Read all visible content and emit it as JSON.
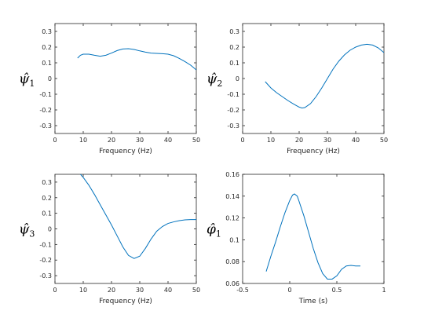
{
  "chart_data": [
    {
      "type": "line",
      "ylabel": {
        "symbol": "ψ̂",
        "sub": "1"
      },
      "xlabel": "Frequency (Hz)",
      "xlim": [
        0,
        50
      ],
      "ylim": [
        -0.35,
        0.35
      ],
      "xticks": [
        0,
        10,
        20,
        30,
        40,
        50
      ],
      "yticks": [
        0.3,
        0.2,
        0.1,
        0,
        -0.1,
        -0.2,
        -0.3
      ],
      "series": [
        {
          "color": "#0072bd",
          "x": [
            8,
            9,
            10,
            12,
            14,
            16,
            18,
            20,
            22,
            24,
            26,
            28,
            30,
            32,
            34,
            36,
            38,
            40,
            42,
            44,
            46,
            48,
            50
          ],
          "y": [
            0.13,
            0.148,
            0.155,
            0.155,
            0.148,
            0.142,
            0.148,
            0.162,
            0.178,
            0.188,
            0.19,
            0.185,
            0.176,
            0.168,
            0.162,
            0.16,
            0.158,
            0.155,
            0.145,
            0.128,
            0.108,
            0.085,
            0.055
          ]
        }
      ]
    },
    {
      "type": "line",
      "ylabel": {
        "symbol": "ψ̂",
        "sub": "2"
      },
      "xlabel": "Frequency (Hz)",
      "xlim": [
        0,
        50
      ],
      "ylim": [
        -0.35,
        0.35
      ],
      "xticks": [
        0,
        10,
        20,
        30,
        40,
        50
      ],
      "yticks": [
        0.3,
        0.2,
        0.1,
        0,
        -0.1,
        -0.2,
        -0.3
      ],
      "series": [
        {
          "color": "#0072bd",
          "x": [
            8,
            10,
            12,
            14,
            16,
            18,
            20,
            21,
            22,
            24,
            26,
            28,
            30,
            32,
            34,
            36,
            38,
            40,
            42,
            44,
            46,
            48,
            50
          ],
          "y": [
            -0.02,
            -0.06,
            -0.09,
            -0.115,
            -0.14,
            -0.162,
            -0.182,
            -0.188,
            -0.185,
            -0.16,
            -0.115,
            -0.06,
            0.0,
            0.06,
            0.11,
            0.15,
            0.18,
            0.2,
            0.213,
            0.218,
            0.213,
            0.195,
            0.165
          ]
        }
      ]
    },
    {
      "type": "line",
      "ylabel": {
        "symbol": "ψ̂",
        "sub": "3"
      },
      "xlabel": "Frequency (Hz)",
      "xlim": [
        0,
        50
      ],
      "ylim": [
        -0.35,
        0.35
      ],
      "xticks": [
        0,
        10,
        20,
        30,
        40,
        50
      ],
      "yticks": [
        0.3,
        0.2,
        0.1,
        0,
        -0.1,
        -0.2,
        -0.3
      ],
      "series": [
        {
          "color": "#0072bd",
          "x": [
            8,
            10,
            12,
            14,
            16,
            18,
            20,
            22,
            24,
            26,
            28,
            30,
            32,
            34,
            36,
            38,
            40,
            42,
            44,
            46,
            48,
            50
          ],
          "y": [
            0.37,
            0.33,
            0.28,
            0.22,
            0.155,
            0.09,
            0.025,
            -0.045,
            -0.115,
            -0.17,
            -0.19,
            -0.175,
            -0.125,
            -0.065,
            -0.015,
            0.015,
            0.035,
            0.045,
            0.053,
            0.058,
            0.06,
            0.06
          ]
        }
      ]
    },
    {
      "type": "line",
      "ylabel": {
        "symbol": "φ̂",
        "sub": "1"
      },
      "xlabel": "Time (s)",
      "xlim": [
        -0.5,
        1
      ],
      "ylim": [
        0.06,
        0.16
      ],
      "xticks": [
        -0.5,
        0,
        0.5,
        1
      ],
      "yticks": [
        0.16,
        0.14,
        0.12,
        0.1,
        0.08,
        0.06
      ],
      "series": [
        {
          "color": "#0072bd",
          "x": [
            -0.25,
            -0.2,
            -0.15,
            -0.1,
            -0.05,
            0.0,
            0.03,
            0.05,
            0.08,
            0.1,
            0.15,
            0.2,
            0.25,
            0.3,
            0.35,
            0.4,
            0.45,
            0.5,
            0.55,
            0.6,
            0.65,
            0.7,
            0.75
          ],
          "y": [
            0.071,
            0.085,
            0.098,
            0.112,
            0.125,
            0.136,
            0.141,
            0.142,
            0.14,
            0.135,
            0.122,
            0.107,
            0.092,
            0.079,
            0.069,
            0.064,
            0.064,
            0.067,
            0.073,
            0.076,
            0.0765,
            0.076,
            0.076
          ]
        }
      ]
    }
  ]
}
